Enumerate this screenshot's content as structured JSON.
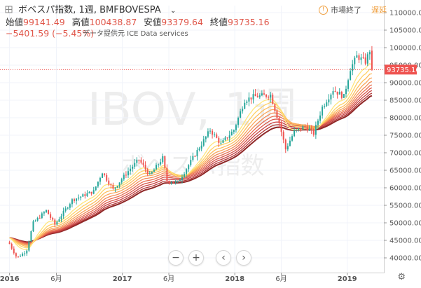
{
  "header": {
    "expand_icon": "expand-icon",
    "symbol": "ボベスパ指数",
    "interval": "1週",
    "exchange_symbol": "BMFBOVESPA",
    "dropdown_icon": "chevron-down-icon",
    "market_status": "市場終了",
    "market_status_icon": "clock-icon",
    "delayed_label": "遅延",
    "ohlc": [
      {
        "label": "始値",
        "value": "99141.49"
      },
      {
        "label": "高値",
        "value": "100438.87"
      },
      {
        "label": "安値",
        "value": "93379.64"
      },
      {
        "label": "終値",
        "value": "93735.16"
      }
    ],
    "change": "−5401.59 (−5.45%)",
    "data_provider": "データ提供元 ICE Data services"
  },
  "watermark": {
    "line1": "IBOV, 1週",
    "line2": "ボベスパ指数"
  },
  "controls": {
    "zoom_out": "−",
    "zoom_in": "+",
    "scroll_left": "‹",
    "scroll_right": "›",
    "settings_icon": "gear-icon"
  },
  "colors": {
    "up": "#26a69a",
    "down": "#ef5350",
    "last_price": "#ef5350",
    "ribbon": [
      "#ffe57a",
      "#ffd166",
      "#fdbd5c",
      "#f9a55a",
      "#f28b58",
      "#e97053",
      "#d9564a",
      "#c84242",
      "#b33636",
      "#8f2727"
    ]
  },
  "chart_data": {
    "type": "candlestick",
    "x_ticks": [
      "2016",
      "6月",
      "2017",
      "6月",
      "2018",
      "6月",
      "2019"
    ],
    "y_ticks": [
      40000,
      45000,
      50000,
      55000,
      60000,
      65000,
      70000,
      75000,
      80000,
      85000,
      90000,
      95000,
      100000,
      105000,
      110000
    ],
    "ylim": [
      36000,
      112000
    ],
    "last_price": 93735.16,
    "last_price_label": "93735.16",
    "anchors": [
      [
        "2016-01-01",
        44000
      ],
      [
        "2016-01-25",
        40000
      ],
      [
        "2016-02-25",
        42000
      ],
      [
        "2016-03-18",
        50000
      ],
      [
        "2016-04-29",
        53500
      ],
      [
        "2016-05-27",
        49500
      ],
      [
        "2016-07-22",
        56500
      ],
      [
        "2016-09-30",
        59000
      ],
      [
        "2016-10-28",
        64500
      ],
      [
        "2016-12-02",
        59500
      ],
      [
        "2017-01-27",
        65500
      ],
      [
        "2017-02-24",
        68000
      ],
      [
        "2017-03-31",
        63500
      ],
      [
        "2017-05-12",
        68500
      ],
      [
        "2017-05-26",
        62000
      ],
      [
        "2017-06-30",
        61500
      ],
      [
        "2017-08-04",
        66500
      ],
      [
        "2017-09-29",
        74500
      ],
      [
        "2017-10-13",
        76500
      ],
      [
        "2017-11-17",
        72500
      ],
      [
        "2017-12-29",
        76500
      ],
      [
        "2018-02-02",
        85000
      ],
      [
        "2018-03-02",
        86000
      ],
      [
        "2018-04-27",
        86500
      ],
      [
        "2018-05-25",
        78500
      ],
      [
        "2018-06-15",
        71000
      ],
      [
        "2018-07-13",
        76000
      ],
      [
        "2018-08-17",
        77500
      ],
      [
        "2018-09-14",
        75500
      ],
      [
        "2018-10-12",
        83000
      ],
      [
        "2018-11-16",
        88000
      ],
      [
        "2018-12-21",
        86000
      ],
      [
        "2019-01-11",
        94000
      ],
      [
        "2019-02-01",
        97500
      ],
      [
        "2019-03-01",
        96000
      ],
      [
        "2019-03-15",
        99200
      ],
      [
        "2019-03-22",
        93735.16
      ]
    ],
    "ma_periods": [
      5,
      7,
      9,
      11,
      13,
      15,
      17,
      19,
      21,
      23
    ]
  }
}
